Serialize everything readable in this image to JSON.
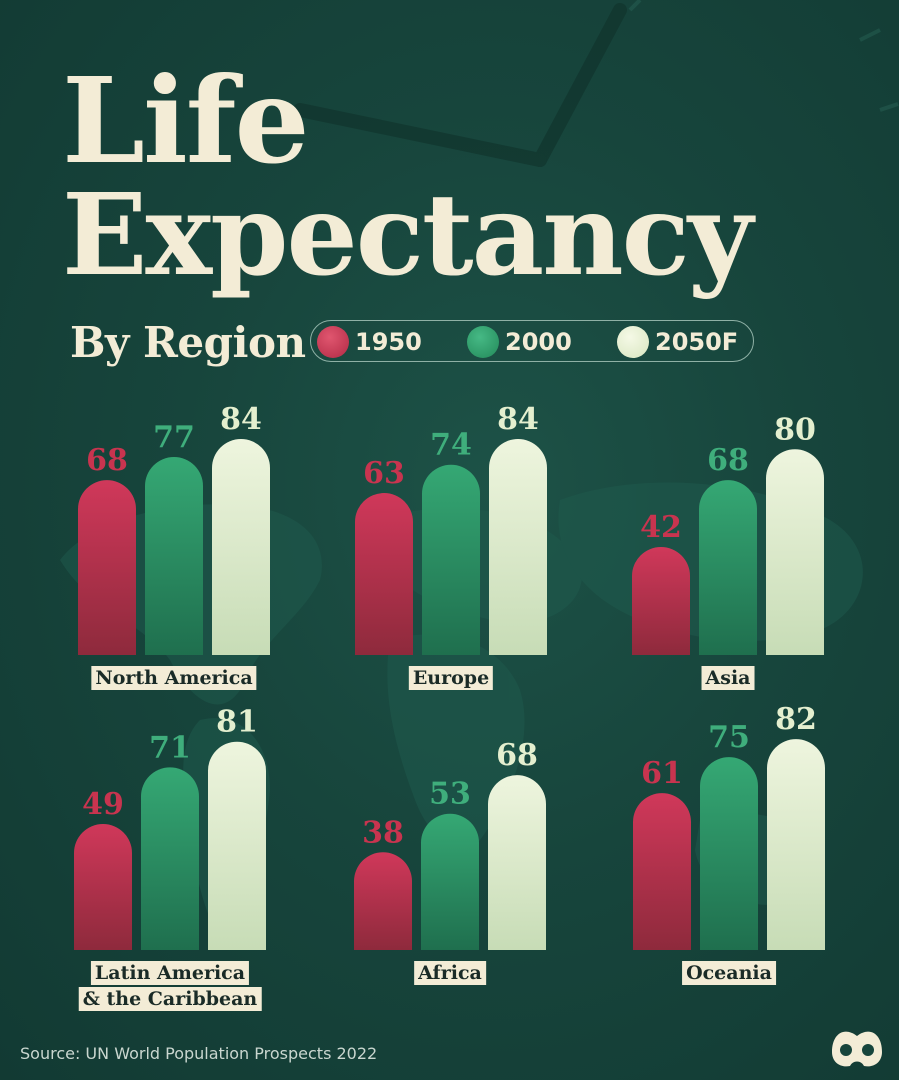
{
  "title_line1": "Life",
  "title_line2": "Expectancy",
  "subtitle": "By Region",
  "source": "Source: UN World Population Prospects 2022",
  "colors": {
    "1950": "#c8344f",
    "2000": "#2d9e6b",
    "2050F": "#e4efcf",
    "background": "#17453c",
    "text": "#f3ecd6"
  },
  "chart_data": {
    "type": "bar",
    "title": "Life Expectancy",
    "subtitle": "By Region",
    "legend": [
      {
        "name": "1950",
        "color": "#c8344f"
      },
      {
        "name": "2000",
        "color": "#2d9e6b"
      },
      {
        "name": "2050F",
        "color": "#e4efcf"
      }
    ],
    "legend_placement": "top",
    "series": [
      "1950",
      "2000",
      "2050F"
    ],
    "regions": [
      {
        "name": "North America",
        "values": [
          68,
          77,
          84
        ]
      },
      {
        "name": "Europe",
        "values": [
          63,
          74,
          84
        ]
      },
      {
        "name": "Asia",
        "values": [
          42,
          68,
          80
        ]
      },
      {
        "name": "Latin America & the Caribbean",
        "values": [
          49,
          71,
          81
        ]
      },
      {
        "name": "Africa",
        "values": [
          38,
          53,
          68
        ]
      },
      {
        "name": "Oceania",
        "values": [
          61,
          75,
          82
        ]
      }
    ]
  }
}
